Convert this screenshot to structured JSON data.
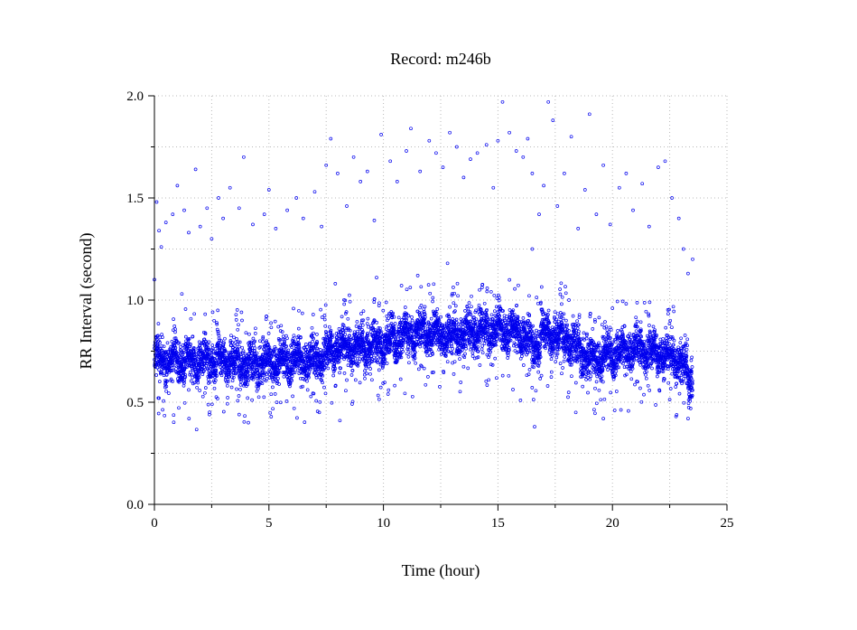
{
  "chart_data": {
    "type": "scatter",
    "title": "Record:  m246b",
    "xlabel": "Time (hour)",
    "ylabel": "RR Interval (second)",
    "xlim": [
      0,
      25
    ],
    "ylim": [
      0,
      2.0
    ],
    "x_ticks": [
      0,
      5,
      10,
      15,
      20,
      25
    ],
    "x_tick_labels": [
      "0",
      "5",
      "10",
      "15",
      "20",
      "25"
    ],
    "y_ticks": [
      0,
      0.5,
      1.0,
      1.5,
      2.0
    ],
    "y_tick_labels": [
      "0.0",
      "0.5",
      "1.0",
      "1.5",
      "2.0"
    ],
    "grid": true,
    "point_color": "#0000ee",
    "series": [
      {
        "x_range": [
          0,
          23.5
        ],
        "baseline": [
          [
            0.0,
            0.7
          ],
          [
            1.0,
            0.71
          ],
          [
            2.0,
            0.7
          ],
          [
            3.0,
            0.71
          ],
          [
            4.0,
            0.68
          ],
          [
            5.0,
            0.7
          ],
          [
            6.0,
            0.71
          ],
          [
            7.0,
            0.7
          ],
          [
            8.0,
            0.77
          ],
          [
            9.0,
            0.77
          ],
          [
            10.0,
            0.79
          ],
          [
            11.0,
            0.83
          ],
          [
            12.0,
            0.84
          ],
          [
            13.0,
            0.82
          ],
          [
            14.0,
            0.85
          ],
          [
            15.0,
            0.86
          ],
          [
            16.0,
            0.84
          ],
          [
            16.6,
            0.76
          ],
          [
            17.0,
            0.84
          ],
          [
            18.0,
            0.81
          ],
          [
            19.0,
            0.71
          ],
          [
            20.0,
            0.74
          ],
          [
            21.0,
            0.76
          ],
          [
            22.0,
            0.74
          ],
          [
            23.0,
            0.7
          ],
          [
            23.5,
            0.58
          ]
        ],
        "outliers": [
          [
            0.1,
            1.48
          ],
          [
            0.2,
            1.34
          ],
          [
            0.3,
            1.26
          ],
          [
            0.5,
            1.38
          ],
          [
            0.8,
            1.42
          ],
          [
            1.0,
            1.56
          ],
          [
            1.3,
            1.44
          ],
          [
            1.5,
            1.33
          ],
          [
            1.8,
            1.64
          ],
          [
            2.0,
            1.36
          ],
          [
            2.3,
            1.45
          ],
          [
            2.5,
            1.3
          ],
          [
            2.8,
            1.5
          ],
          [
            3.0,
            1.4
          ],
          [
            3.3,
            1.55
          ],
          [
            3.7,
            1.45
          ],
          [
            3.9,
            1.7
          ],
          [
            4.3,
            1.37
          ],
          [
            4.8,
            1.42
          ],
          [
            5.0,
            1.54
          ],
          [
            5.3,
            1.35
          ],
          [
            5.8,
            1.44
          ],
          [
            6.2,
            1.5
          ],
          [
            6.5,
            1.4
          ],
          [
            7.0,
            1.53
          ],
          [
            7.3,
            1.36
          ],
          [
            7.5,
            1.66
          ],
          [
            7.7,
            1.79
          ],
          [
            8.0,
            1.62
          ],
          [
            8.4,
            1.46
          ],
          [
            8.7,
            1.7
          ],
          [
            9.0,
            1.58
          ],
          [
            9.3,
            1.63
          ],
          [
            9.6,
            1.39
          ],
          [
            9.9,
            1.81
          ],
          [
            10.3,
            1.68
          ],
          [
            10.6,
            1.58
          ],
          [
            11.0,
            1.73
          ],
          [
            11.2,
            1.84
          ],
          [
            11.6,
            1.63
          ],
          [
            12.0,
            1.78
          ],
          [
            12.3,
            1.72
          ],
          [
            12.6,
            1.65
          ],
          [
            12.9,
            1.82
          ],
          [
            13.2,
            1.75
          ],
          [
            13.5,
            1.6
          ],
          [
            13.8,
            1.69
          ],
          [
            14.1,
            1.72
          ],
          [
            14.5,
            1.76
          ],
          [
            14.8,
            1.55
          ],
          [
            15.0,
            1.78
          ],
          [
            15.2,
            1.97
          ],
          [
            15.5,
            1.82
          ],
          [
            15.8,
            1.73
          ],
          [
            16.1,
            1.7
          ],
          [
            16.3,
            1.79
          ],
          [
            16.5,
            1.62
          ],
          [
            16.8,
            1.42
          ],
          [
            17.0,
            1.56
          ],
          [
            17.2,
            1.97
          ],
          [
            17.4,
            1.88
          ],
          [
            17.6,
            1.46
          ],
          [
            17.9,
            1.62
          ],
          [
            18.2,
            1.8
          ],
          [
            18.5,
            1.35
          ],
          [
            18.8,
            1.54
          ],
          [
            19.0,
            1.91
          ],
          [
            19.3,
            1.42
          ],
          [
            19.6,
            1.66
          ],
          [
            19.9,
            1.37
          ],
          [
            20.3,
            1.55
          ],
          [
            20.6,
            1.62
          ],
          [
            20.9,
            1.44
          ],
          [
            21.3,
            1.57
          ],
          [
            21.6,
            1.36
          ],
          [
            22.0,
            1.65
          ],
          [
            22.3,
            1.68
          ],
          [
            22.6,
            1.5
          ],
          [
            22.9,
            1.4
          ],
          [
            23.1,
            1.25
          ],
          [
            23.3,
            1.13
          ],
          [
            23.5,
            1.2
          ],
          [
            0.2,
            0.52
          ],
          [
            1.5,
            0.56
          ],
          [
            2.4,
            0.44
          ],
          [
            3.7,
            0.44
          ],
          [
            4.1,
            0.4
          ],
          [
            6.1,
            0.47
          ],
          [
            7.2,
            0.45
          ],
          [
            8.1,
            0.41
          ],
          [
            10.2,
            0.54
          ],
          [
            16.6,
            0.38
          ],
          [
            18.4,
            0.45
          ],
          [
            19.6,
            0.42
          ],
          [
            20.1,
            0.46
          ],
          [
            23.3,
            0.42
          ],
          [
            0.0,
            1.1
          ],
          [
            1.2,
            1.03
          ],
          [
            4.0,
            0.84
          ],
          [
            6.3,
            0.86
          ],
          [
            7.9,
            1.08
          ],
          [
            9.7,
            1.11
          ],
          [
            11.5,
            1.12
          ],
          [
            12.8,
            1.18
          ],
          [
            14.2,
            1.05
          ],
          [
            16.5,
            1.25
          ],
          [
            18.1,
            1.0
          ],
          [
            20.0,
            0.96
          ]
        ]
      }
    ]
  }
}
